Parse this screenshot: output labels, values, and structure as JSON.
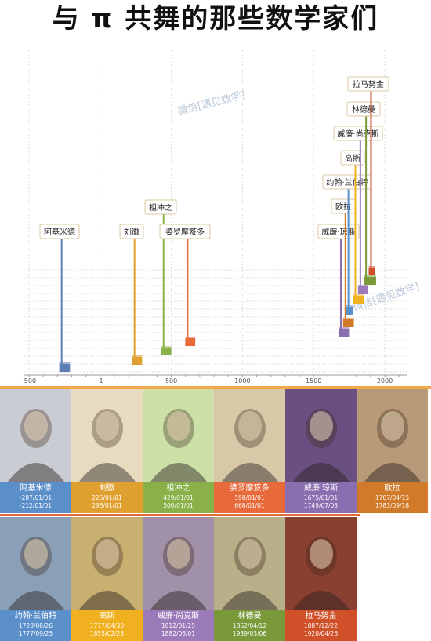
{
  "title": "与 π 共舞的那些数学家们",
  "watermark": "微信[遇见数学]",
  "chart_data": {
    "type": "timeline",
    "xlim": [
      -500,
      2100
    ],
    "x_ticks": [
      -500,
      -1,
      500,
      1000,
      1500,
      2000
    ],
    "x_tick_labels": [
      "-500",
      "-1",
      "500",
      "1000",
      "1500",
      "2000"
    ],
    "items": [
      {
        "label": "阿基米德",
        "start": -287,
        "end": -212,
        "color": "#5b7fb5"
      },
      {
        "label": "刘徽",
        "start": 225,
        "end": 295,
        "color": "#e0a030"
      },
      {
        "label": "祖冲之",
        "start": 429,
        "end": 500,
        "color": "#8ab04a"
      },
      {
        "label": "婆罗摩笈多",
        "start": 598,
        "end": 668,
        "color": "#e86a3a"
      },
      {
        "label": "威廉·琼斯",
        "start": 1675,
        "end": 1749,
        "color": "#8a6fb0"
      },
      {
        "label": "欧拉",
        "start": 1707,
        "end": 1783,
        "color": "#d07a2a"
      },
      {
        "label": "约翰·兰伯特",
        "start": 1728,
        "end": 1777,
        "color": "#5b8fc9"
      },
      {
        "label": "高斯",
        "start": 1777,
        "end": 1855,
        "color": "#f0b020"
      },
      {
        "label": "威廉·尚克斯",
        "start": 1812,
        "end": 1882,
        "color": "#9a7ab8"
      },
      {
        "label": "林德曼",
        "start": 1852,
        "end": 1939,
        "color": "#7a9a3a"
      },
      {
        "label": "拉马努金",
        "start": 1887,
        "end": 1920,
        "color": "#d0502a"
      }
    ]
  },
  "cards": [
    {
      "name": "阿基米德",
      "birth": "-287/01/01",
      "death": "-212/01/01",
      "band": "#5b8fc9",
      "bg": "#c9ccd2",
      "icon": "coin-portrait-icon"
    },
    {
      "name": "刘徽",
      "birth": "225/01/01",
      "death": "295/01/01",
      "band": "#e0a030",
      "bg": "#e8dcc0",
      "icon": "ink-portrait-icon"
    },
    {
      "name": "祖冲之",
      "birth": "429/01/01",
      "death": "500/01/01",
      "band": "#8ab04a",
      "bg": "#cde0a8",
      "icon": "painted-portrait-icon"
    },
    {
      "name": "婆罗摩笈多",
      "birth": "598/01/01",
      "death": "668/01/01",
      "band": "#e86a3a",
      "bg": "#d8c8a8",
      "icon": "seated-figure-icon"
    },
    {
      "name": "威廉·琼斯",
      "birth": "1675/01/01",
      "death": "1749/07/03",
      "band": "#8a6fb0",
      "bg": "#6a5080",
      "icon": "oil-portrait-icon"
    },
    {
      "name": "欧拉",
      "birth": "1707/04/15",
      "death": "1783/09/18",
      "band": "#d07a2a",
      "bg": "#b89a78",
      "icon": "oil-portrait-icon"
    },
    {
      "name": "约翰·兰伯特",
      "birth": "1728/08/26",
      "death": "1777/09/25",
      "band": "#5b8fc9",
      "bg": "#8aa0b8",
      "icon": "engraving-portrait-icon"
    },
    {
      "name": "高斯",
      "birth": "1777/04/30",
      "death": "1855/02/23",
      "band": "#f0b020",
      "bg": "#c8b070",
      "icon": "engraving-portrait-icon"
    },
    {
      "name": "威廉·尚克斯",
      "birth": "1812/01/25",
      "death": "1882/06/01",
      "band": "#9a7ab8",
      "bg": "#a090a8",
      "icon": "photo-portrait-icon"
    },
    {
      "name": "林德曼",
      "birth": "1852/04/12",
      "death": "1939/03/06",
      "band": "#7a9a3a",
      "bg": "#b8b088",
      "icon": "photo-portrait-icon"
    },
    {
      "name": "拉马努金",
      "birth": "1887/12/22",
      "death": "1920/04/26",
      "band": "#d0502a",
      "bg": "#8a4030",
      "icon": "photo-portrait-icon"
    }
  ]
}
